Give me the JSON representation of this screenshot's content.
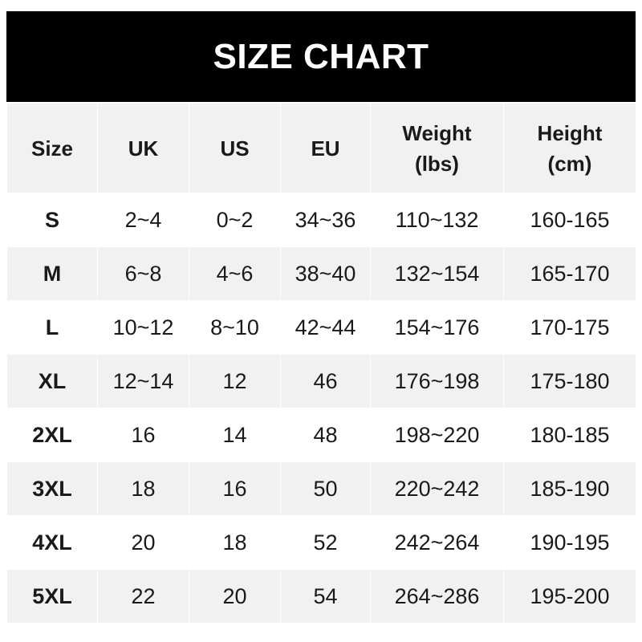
{
  "title": "SIZE CHART",
  "headers": [
    "Size",
    "UK",
    "US",
    "EU",
    "Weight (lbs)",
    "Height (cm)"
  ],
  "rows": [
    [
      "S",
      "2~4",
      "0~2",
      "34~36",
      "110~132",
      "160-165"
    ],
    [
      "M",
      "6~8",
      "4~6",
      "38~40",
      "132~154",
      "165-170"
    ],
    [
      "L",
      "10~12",
      "8~10",
      "42~44",
      "154~176",
      "170-175"
    ],
    [
      "XL",
      "12~14",
      "12",
      "46",
      "176~198",
      "175-180"
    ],
    [
      "2XL",
      "16",
      "14",
      "48",
      "198~220",
      "180-185"
    ],
    [
      "3XL",
      "18",
      "16",
      "50",
      "220~242",
      "185-190"
    ],
    [
      "4XL",
      "20",
      "18",
      "52",
      "242~264",
      "190-195"
    ],
    [
      "5XL",
      "22",
      "20",
      "54",
      "264~286",
      "195-200"
    ]
  ],
  "colors": {
    "title_bg": "#000000",
    "header_bg": "#f1f1f1",
    "alt_row_bg": "#f1f1f1"
  }
}
